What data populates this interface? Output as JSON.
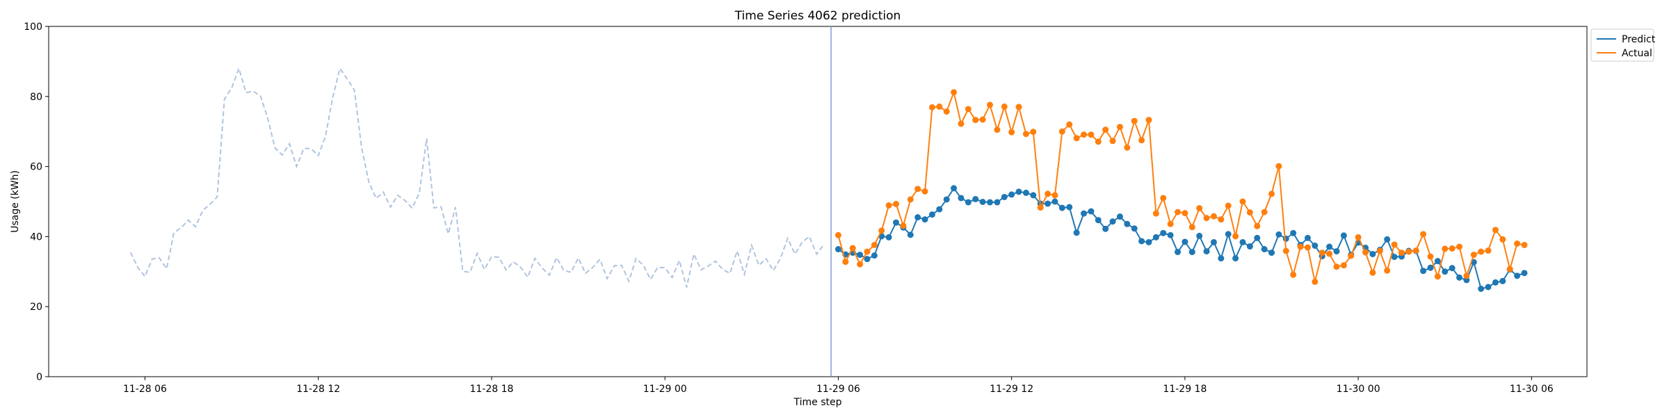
{
  "chart_data": {
    "type": "line",
    "title": "Time Series 4062 prediction",
    "xlabel": "Time step",
    "ylabel": "Usage (kWh)",
    "ylim": [
      0,
      100
    ],
    "yticks": [
      0,
      20,
      40,
      60,
      80,
      100
    ],
    "xlim": [
      "2025-11-28 02:40",
      "2025-11-30 07:55"
    ],
    "xticks": [
      {
        "t": "2025-11-28 06:00",
        "label": "11-28 06"
      },
      {
        "t": "2025-11-28 12:00",
        "label": "11-28 12"
      },
      {
        "t": "2025-11-28 18:00",
        "label": "11-28 18"
      },
      {
        "t": "2025-11-29 00:00",
        "label": "11-29 00"
      },
      {
        "t": "2025-11-29 06:00",
        "label": "11-29 06"
      },
      {
        "t": "2025-11-29 12:00",
        "label": "11-29 12"
      },
      {
        "t": "2025-11-29 18:00",
        "label": "11-29 18"
      },
      {
        "t": "2025-11-30 00:00",
        "label": "11-30 00"
      },
      {
        "t": "2025-11-30 06:00",
        "label": "11-30 06"
      }
    ],
    "grid": false,
    "legend_position": "outside top-right",
    "split_time": "2025-11-29 05:45",
    "history": {
      "start": "2025-11-28 05:30",
      "step_minutes": 15,
      "style": "dashed",
      "color": "#b0c4de",
      "values": [
        35.5,
        31.2,
        28.6,
        33.6,
        33.9,
        30.8,
        41.1,
        42.5,
        44.7,
        42.8,
        47.5,
        49.2,
        51.3,
        79.2,
        82.4,
        88.0,
        81.1,
        81.5,
        80.1,
        73.8,
        65.3,
        63.3,
        66.5,
        60.0,
        65.2,
        65.1,
        63.1,
        68.6,
        79.8,
        88.0,
        85.0,
        81.8,
        65.3,
        55.6,
        50.9,
        52.7,
        48.4,
        51.8,
        50.3,
        48.1,
        52.5,
        68.0,
        48.2,
        48.5,
        40.8,
        48.4,
        30.1,
        29.8,
        35.2,
        30.6,
        34.3,
        34.1,
        30.5,
        32.8,
        31.3,
        28.4,
        33.8,
        31.0,
        29.0,
        34.0,
        30.3,
        29.8,
        33.9,
        29.5,
        31.2,
        33.5,
        28.0,
        31.7,
        31.8,
        27.3,
        33.7,
        31.9,
        27.8,
        31.2,
        31.1,
        28.3,
        33.2,
        25.5,
        35.0,
        30.5,
        31.6,
        33.0,
        30.6,
        29.5,
        35.9,
        29.2,
        37.5,
        31.8,
        33.7,
        30.3,
        33.8,
        39.5,
        35.0,
        38.4,
        40.0,
        35.0,
        37.7
      ]
    },
    "series": [
      {
        "name": "Predict",
        "color": "#1f77b4",
        "start": "2025-11-29 06:00",
        "step_minutes": 15,
        "values": [
          36.4,
          34.9,
          35.4,
          34.8,
          33.6,
          34.6,
          40.1,
          39.8,
          44.0,
          42.6,
          40.5,
          45.5,
          44.9,
          46.3,
          47.8,
          50.6,
          53.8,
          51.0,
          49.8,
          50.7,
          49.9,
          49.8,
          49.8,
          51.3,
          52.0,
          52.8,
          52.5,
          51.8,
          49.4,
          49.4,
          50.0,
          48.2,
          48.4,
          41.1,
          46.6,
          47.2,
          44.7,
          42.2,
          44.3,
          45.7,
          43.6,
          42.3,
          38.7,
          38.4,
          39.8,
          41.0,
          40.4,
          35.6,
          38.5,
          35.6,
          40.2,
          35.8,
          38.4,
          33.8,
          40.7,
          33.8,
          38.4,
          37.2,
          39.6,
          36.4,
          35.4,
          40.6,
          39.4,
          41.0,
          37.6,
          39.6,
          37.4,
          34.4,
          37.1,
          35.8,
          40.3,
          34.8,
          38.3,
          36.8,
          35.0,
          36.2,
          39.2,
          34.2,
          34.3,
          35.9,
          35.9,
          30.2,
          31.1,
          33.0,
          30.0,
          31.0,
          28.3,
          27.6,
          32.7,
          25.1,
          25.6,
          26.9,
          27.3,
          30.6,
          28.8,
          29.6
        ]
      },
      {
        "name": "Actual",
        "color": "#ff7f0e",
        "start": "2025-11-29 06:00",
        "step_minutes": 15,
        "values": [
          40.4,
          32.8,
          36.7,
          32.1,
          35.7,
          37.6,
          41.7,
          48.9,
          49.3,
          43.1,
          50.6,
          53.6,
          52.9,
          76.9,
          77.1,
          75.7,
          81.2,
          72.2,
          76.4,
          73.3,
          73.4,
          77.6,
          70.5,
          77.1,
          69.8,
          77.0,
          69.3,
          69.9,
          48.3,
          52.2,
          51.8,
          70.0,
          72.0,
          68.1,
          69.1,
          69.1,
          67.1,
          70.5,
          67.3,
          71.3,
          65.4,
          73.0,
          67.5,
          73.3,
          46.6,
          51.0,
          43.6,
          47.0,
          46.7,
          42.7,
          48.1,
          45.3,
          45.8,
          44.9,
          48.8,
          40.1,
          50.0,
          46.9,
          43.0,
          47.0,
          52.2,
          60.1,
          35.9,
          29.1,
          37.1,
          36.9,
          27.1,
          35.4,
          35.1,
          31.4,
          31.8,
          34.5,
          39.8,
          35.5,
          29.7,
          35.9,
          30.3,
          37.7,
          35.4,
          35.7,
          36.0,
          40.7,
          34.3,
          28.6,
          36.5,
          36.6,
          37.1,
          28.8,
          34.8,
          35.7,
          36.0,
          41.9,
          39.2,
          30.7,
          38.0,
          37.6
        ]
      }
    ]
  }
}
